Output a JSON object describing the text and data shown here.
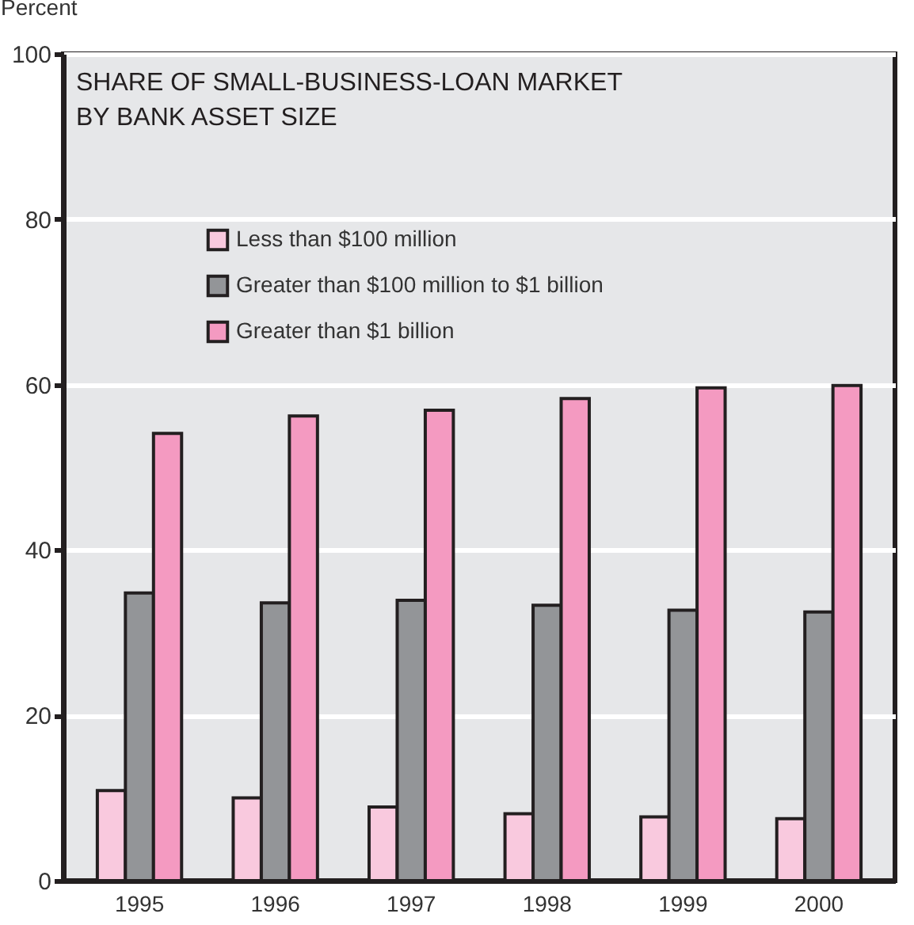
{
  "chart_data": {
    "type": "bar",
    "title": [
      "SHARE OF SMALL-BUSINESS-LOAN MARKET",
      "BY BANK ASSET SIZE"
    ],
    "ylabel": "Percent",
    "categories": [
      "1995",
      "1996",
      "1997",
      "1998",
      "1999",
      "2000"
    ],
    "series": [
      {
        "name": "Less than $100 million",
        "color": "#f9c9de",
        "values": [
          10.9,
          10.0,
          8.9,
          8.1,
          7.7,
          7.5
        ]
      },
      {
        "name": "Greater than $100 million to $1 billion",
        "color": "#939598",
        "values": [
          34.8,
          33.6,
          33.9,
          33.3,
          32.7,
          32.5
        ]
      },
      {
        "name": "Greater than $1 billion",
        "color": "#f49ac1",
        "values": [
          54.1,
          56.2,
          56.9,
          58.3,
          59.6,
          59.9
        ]
      }
    ],
    "ylim": [
      0,
      100
    ],
    "yticks": [
      0,
      20,
      40,
      60,
      80,
      100
    ],
    "grid": "y",
    "legend": "top left"
  }
}
